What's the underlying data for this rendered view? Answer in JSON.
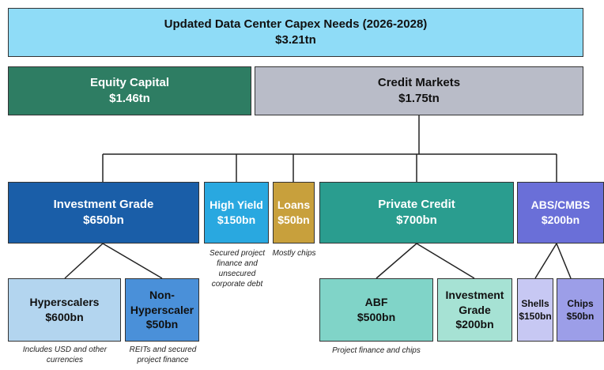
{
  "nodes": [
    {
      "label": "Updated Data Center Capex Needs (2026-2028)",
      "value": "$3.21tn"
    },
    {
      "label": "Equity Capital",
      "value": "$1.46tn"
    },
    {
      "label": "Credit Markets",
      "value": "$1.75tn"
    },
    {
      "label": "Investment Grade",
      "value": "$650bn"
    },
    {
      "label": "High Yield",
      "value": "$150bn"
    },
    {
      "label": "Loans",
      "value": "$50bn"
    },
    {
      "label": "Private Credit",
      "value": "$700bn"
    },
    {
      "label": "ABS/CMBS",
      "value": "$200bn"
    },
    {
      "label": "Hyperscalers",
      "value": "$600bn"
    },
    {
      "label": "Non-Hyperscaler",
      "value": "$50bn"
    },
    {
      "label": "ABF",
      "value": "$500bn"
    },
    {
      "label": "Investment Grade",
      "value": "$200bn"
    },
    {
      "label": "Shells",
      "value": "$150bn"
    },
    {
      "label": "Chips",
      "value": "$50bn"
    }
  ],
  "notes": [
    "Secured project finance and unsecured corporate debt",
    "Mostly chips",
    "Includes USD and other currencies",
    "REITs and secured project finance",
    "Project finance and chips"
  ]
}
